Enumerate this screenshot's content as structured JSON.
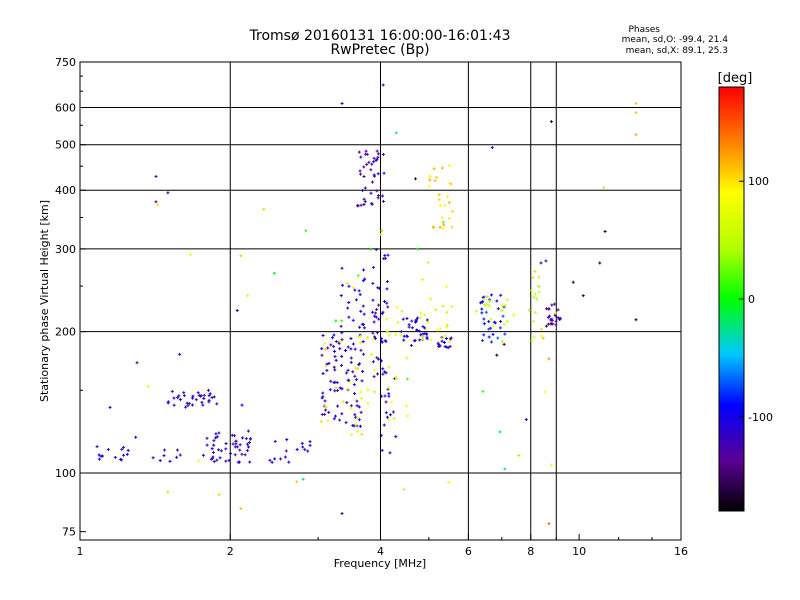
{
  "chart_data": {
    "type": "scatter",
    "title": "Tromsø 20160131 16:00:00-16:01:43",
    "subtitle": "RwPretec (Bp)",
    "xlabel": "Frequency [MHz]",
    "ylabel": "Stationary phase Virtual Height [km]",
    "x_scale": "log",
    "y_scale": "log",
    "xlim": [
      1,
      16
    ],
    "ylim": [
      72,
      750
    ],
    "x_ticks": [
      1,
      2,
      4,
      6,
      8,
      10,
      16
    ],
    "x_grid": [
      2,
      4,
      6,
      8,
      9
    ],
    "y_ticks": [
      75,
      100,
      200,
      300,
      400,
      500,
      600,
      750
    ],
    "grid": true,
    "phases": {
      "title": "Phases",
      "line_o": "mean, sd,O: -99.4, 21.4",
      "line_x": "mean, sd,X:  89.1, 25.3"
    },
    "colorbar": {
      "unit": "[deg]",
      "range": [
        -180,
        180
      ],
      "ticks": [
        100,
        0,
        -100
      ]
    },
    "clusters": [
      {
        "x": [
          1.05,
          1.25
        ],
        "y": [
          105,
          115
        ],
        "phase": -110,
        "n": 14
      },
      {
        "x": [
          1.4,
          1.6
        ],
        "y": [
          105,
          115
        ],
        "phase": -105,
        "n": 8
      },
      {
        "x": [
          1.5,
          1.9
        ],
        "y": [
          138,
          150
        ],
        "phase": -115,
        "n": 34
      },
      {
        "x": [
          1.75,
          2.2
        ],
        "y": [
          105,
          122
        ],
        "phase": -115,
        "n": 48
      },
      {
        "x": [
          2.4,
          2.9
        ],
        "y": [
          105,
          120
        ],
        "phase": -110,
        "n": 16
      },
      {
        "x": [
          3.05,
          3.7
        ],
        "y": [
          125,
          200
        ],
        "phase": -110,
        "n": 85
      },
      {
        "x": [
          3.3,
          3.75
        ],
        "y": [
          200,
          280
        ],
        "phase": -105,
        "n": 22
      },
      {
        "x": [
          3.6,
          4.1
        ],
        "y": [
          370,
          500
        ],
        "phase": -120,
        "n": 42
      },
      {
        "x": [
          3.85,
          4.15
        ],
        "y": [
          140,
          300
        ],
        "phase": -115,
        "n": 45
      },
      {
        "x": [
          4.0,
          4.3
        ],
        "y": [
          110,
          170
        ],
        "phase": -110,
        "n": 14
      },
      {
        "x": [
          4.4,
          5.0
        ],
        "y": [
          185,
          215
        ],
        "phase": -105,
        "n": 35
      },
      {
        "x": [
          5.2,
          5.6
        ],
        "y": [
          180,
          195
        ],
        "phase": -110,
        "n": 16
      },
      {
        "x": [
          4.8,
          5.6
        ],
        "y": [
          190,
          240
        ],
        "phase": 70,
        "n": 20
      },
      {
        "x": [
          5.0,
          5.6
        ],
        "y": [
          330,
          460
        ],
        "phase": 105,
        "n": 26
      },
      {
        "x": [
          6.3,
          7.1
        ],
        "y": [
          190,
          240
        ],
        "phase": -90,
        "n": 32
      },
      {
        "x": [
          6.2,
          7.4
        ],
        "y": [
          190,
          240
        ],
        "phase": 60,
        "n": 18
      },
      {
        "x": [
          7.9,
          8.4
        ],
        "y": [
          190,
          270
        ],
        "phase": 50,
        "n": 14
      },
      {
        "x": [
          8.6,
          9.2
        ],
        "y": [
          205,
          230
        ],
        "phase": -130,
        "n": 24
      },
      {
        "x": [
          3.0,
          3.9
        ],
        "y": [
          120,
          200
        ],
        "phase": 90,
        "n": 30
      },
      {
        "x": [
          4.1,
          4.6
        ],
        "y": [
          130,
          230
        ],
        "phase": 80,
        "n": 18
      },
      {
        "x": [
          1.3,
          9.5
        ],
        "y": [
          90,
          380
        ],
        "phase": 95,
        "n": 24
      },
      {
        "x": [
          1.1,
          10
        ],
        "y": [
          100,
          300
        ],
        "phase": -100,
        "n": 12
      },
      {
        "x": [
          1.4,
          9.0
        ],
        "y": [
          120,
          350
        ],
        "phase": 10,
        "n": 12
      },
      {
        "x": [
          3.0,
          13
        ],
        "y": [
          150,
          400
        ],
        "phase": -160,
        "n": 8
      }
    ],
    "points": [
      {
        "x": 1.42,
        "y": 428,
        "phase": -120
      },
      {
        "x": 1.42,
        "y": 378,
        "phase": -120
      },
      {
        "x": 1.5,
        "y": 395,
        "phase": -120
      },
      {
        "x": 3.35,
        "y": 612,
        "phase": -120
      },
      {
        "x": 4.05,
        "y": 670,
        "phase": -120
      },
      {
        "x": 3.35,
        "y": 82,
        "phase": -120
      },
      {
        "x": 8.8,
        "y": 560,
        "phase": -160
      },
      {
        "x": 4.7,
        "y": 423,
        "phase": -160
      },
      {
        "x": 6.7,
        "y": 493,
        "phase": -100
      },
      {
        "x": 4.3,
        "y": 530,
        "phase": -20
      },
      {
        "x": 11,
        "y": 280,
        "phase": -165
      },
      {
        "x": 13,
        "y": 212,
        "phase": -165
      },
      {
        "x": 13,
        "y": 612,
        "phase": 110
      },
      {
        "x": 13,
        "y": 585,
        "phase": 110
      },
      {
        "x": 13,
        "y": 525,
        "phase": 120
      },
      {
        "x": 11.2,
        "y": 405,
        "phase": 105
      },
      {
        "x": 8.7,
        "y": 78,
        "phase": 150
      },
      {
        "x": 8.7,
        "y": 175,
        "phase": 130
      },
      {
        "x": 2.1,
        "y": 84,
        "phase": 110
      },
      {
        "x": 2.1,
        "y": 290,
        "phase": 110
      },
      {
        "x": 7.1,
        "y": 102,
        "phase": -30
      },
      {
        "x": 2.8,
        "y": 97,
        "phase": -30
      },
      {
        "x": 1.5,
        "y": 91,
        "phase": 105
      },
      {
        "x": 1.9,
        "y": 90,
        "phase": 105
      }
    ]
  }
}
